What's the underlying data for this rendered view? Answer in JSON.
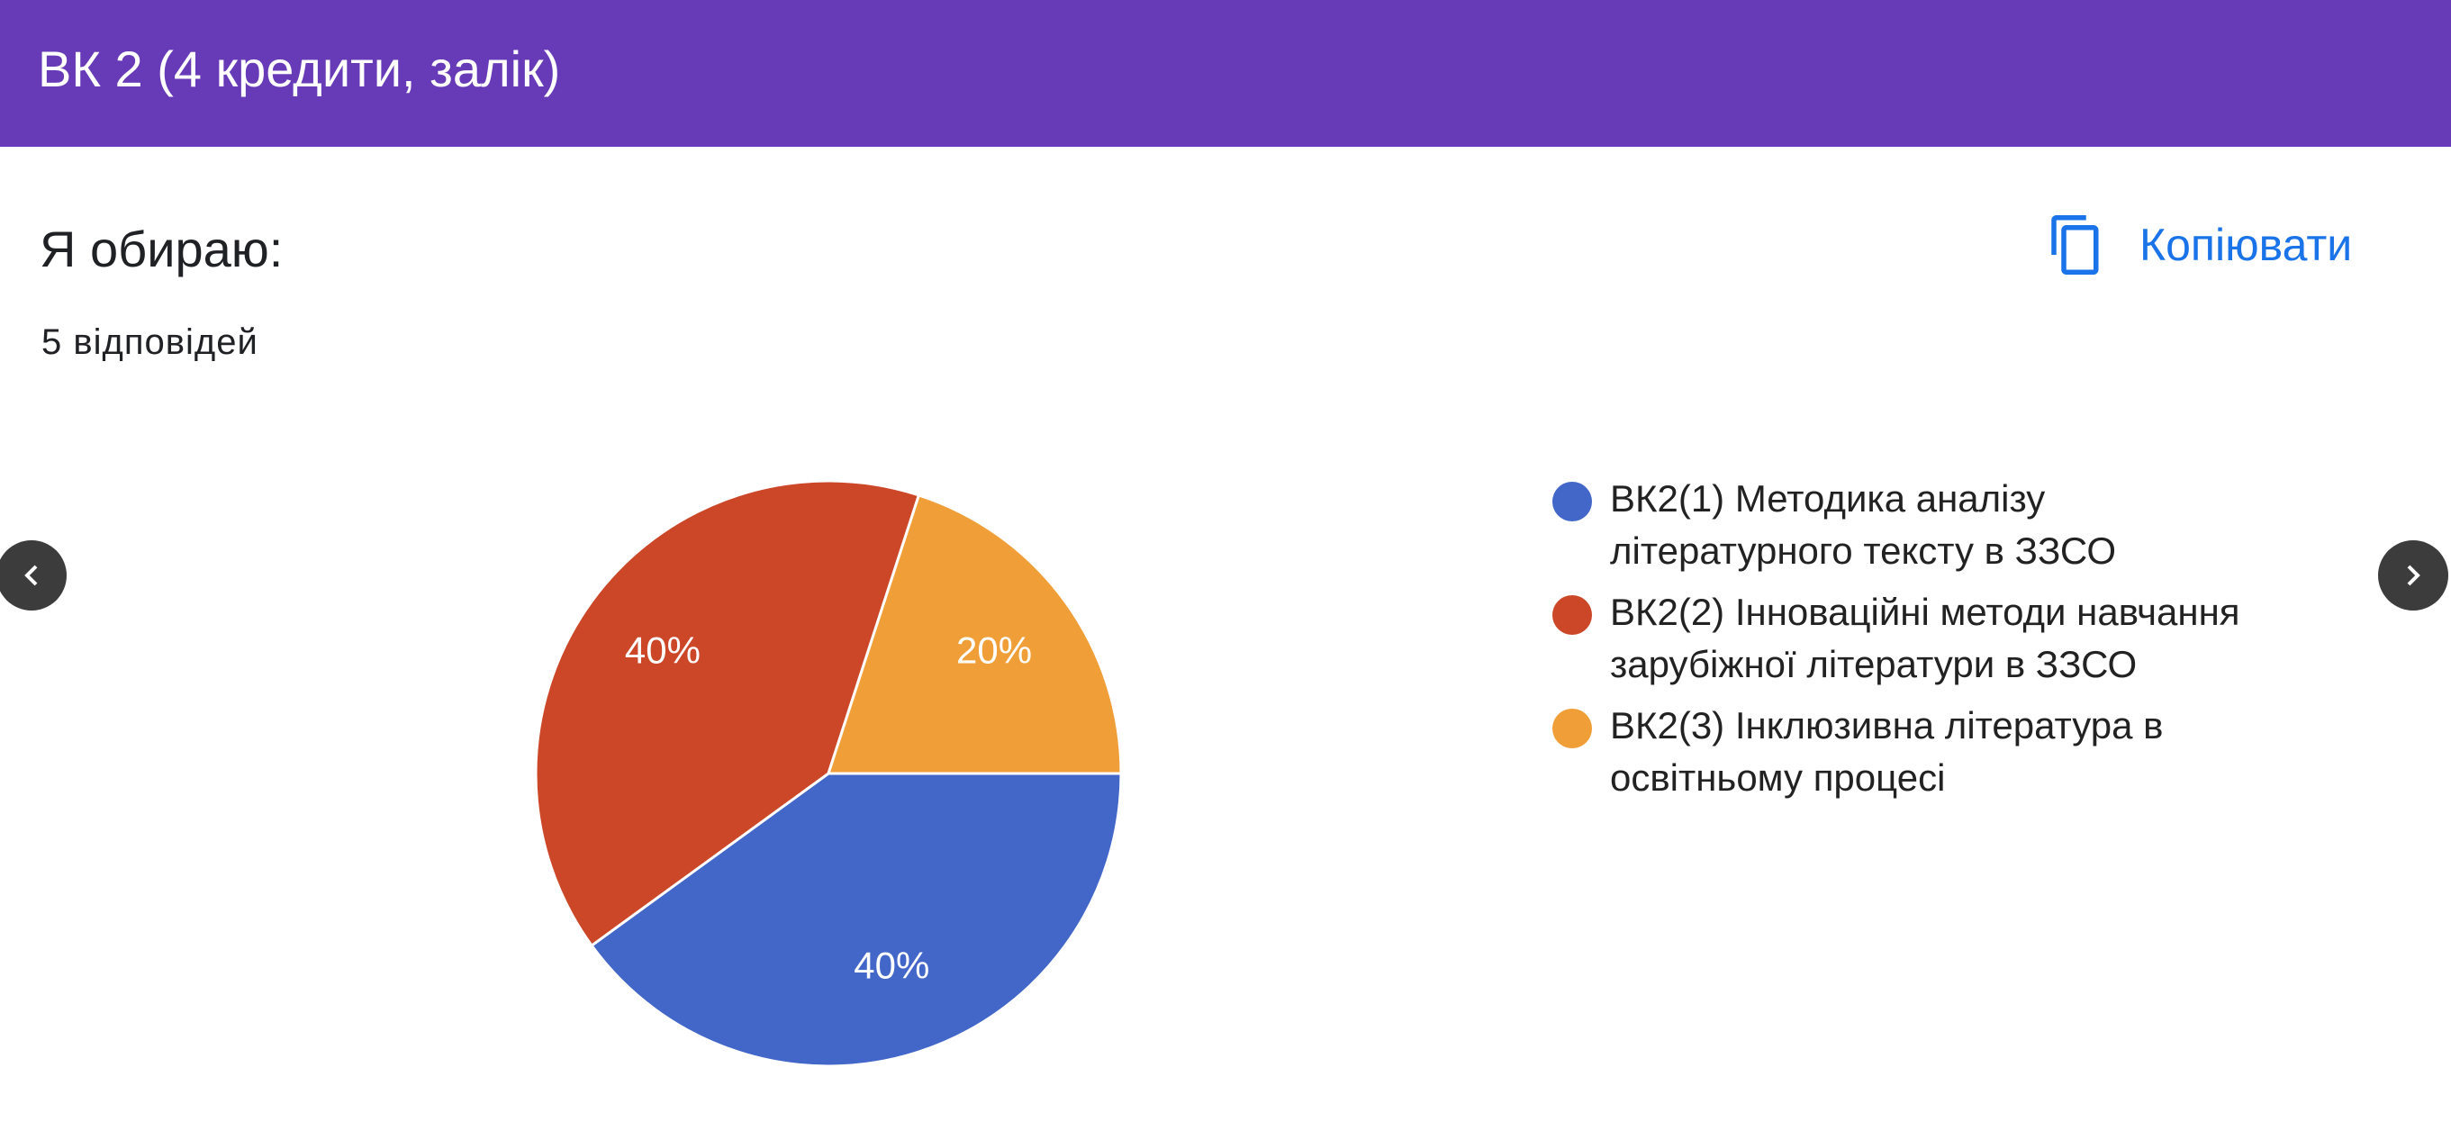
{
  "header": {
    "title": "ВК 2 (4 кредити, залік)"
  },
  "question": {
    "title": "Я обираю:",
    "responses": "5 відповідей"
  },
  "copy_button": "Копіювати",
  "chart_data": {
    "type": "pie",
    "categories": [
      "ВК2(1) Методика аналізу літературного тексту в ЗЗСО",
      "ВК2(2) Інноваційні методи навчання зарубіжної літератури в ЗЗСО",
      "ВК2(3) Інклюзивна література в освітньому процесі"
    ],
    "values": [
      40,
      40,
      20
    ],
    "value_labels": [
      "40%",
      "40%",
      "20%"
    ],
    "colors": [
      "#4267c8",
      "#cb4728",
      "#f09f38"
    ]
  }
}
